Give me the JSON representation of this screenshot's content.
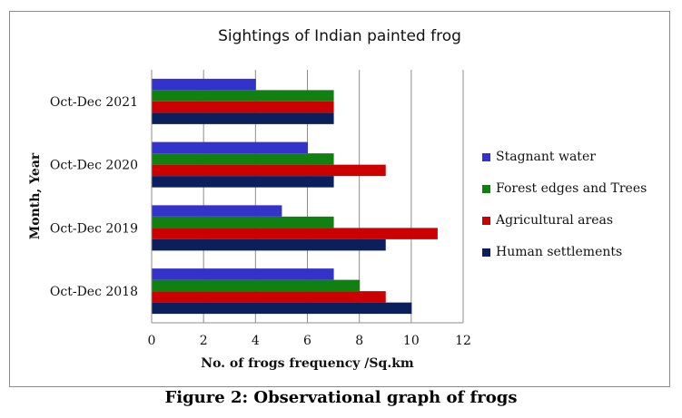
{
  "chart_data": {
    "type": "bar",
    "orientation": "horizontal",
    "title": "Sightings of  Indian painted frog",
    "xlabel": "No. of frogs frequency /Sq.km",
    "ylabel": "Month, Year",
    "xlim": [
      0,
      12
    ],
    "xticks": [
      "0",
      "2",
      "4",
      "6",
      "8",
      "10",
      "12"
    ],
    "grid": "vertical",
    "legend_position": "right",
    "categories": [
      "Oct-Dec 2018",
      "Oct-Dec 2019",
      "Oct-Dec 2020",
      "Oct-Dec 2021"
    ],
    "series": [
      {
        "name": "Stagnant water",
        "color": "#3333CC",
        "values": [
          7,
          5,
          6,
          4
        ]
      },
      {
        "name": "Forest edges and Trees",
        "color": "#108010",
        "values": [
          8,
          7,
          7,
          7
        ]
      },
      {
        "name": "Agricultural areas",
        "color": "#CC0000",
        "values": [
          9,
          11,
          9,
          7
        ]
      },
      {
        "name": "Human settlements",
        "color": "#0A1F5C",
        "values": [
          10,
          9,
          7,
          7
        ]
      }
    ]
  },
  "caption": "Figure 2: Observational graph of frogs"
}
